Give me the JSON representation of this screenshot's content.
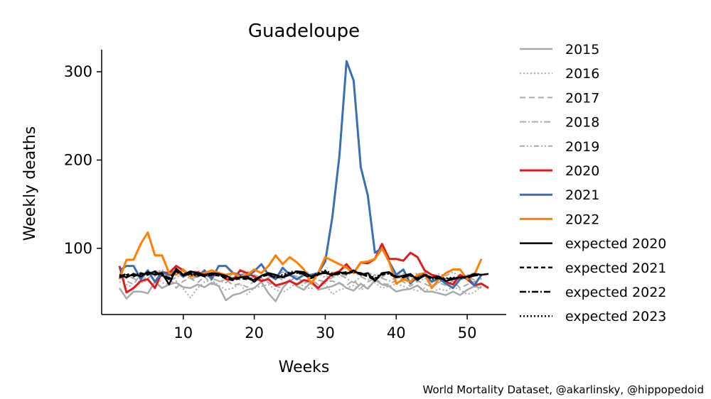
{
  "credit": "World Mortality Dataset, @akarlinsky, @hippopedoid",
  "chart_data": {
    "type": "line",
    "title": "Guadeloupe",
    "xlabel": "Weeks",
    "ylabel": "Weekly deaths",
    "xlim": [
      -1.5,
      55.5
    ],
    "ylim": [
      25,
      325
    ],
    "xticks": [
      10,
      20,
      30,
      40,
      50
    ],
    "yticks": [
      100,
      200,
      300
    ],
    "grid": false,
    "legend_position": "right",
    "series": [
      {
        "name": "2015",
        "color": "#aaaaaa",
        "dash": "",
        "width": 2.5,
        "values": [
          55,
          43,
          51,
          51,
          49,
          62,
          55,
          59,
          61,
          56,
          55,
          59,
          56,
          61,
          57,
          41,
          47,
          49,
          53,
          55,
          62,
          49,
          40,
          55,
          64,
          57,
          53,
          62,
          53,
          55,
          57,
          61,
          55,
          52,
          60,
          54,
          64,
          59,
          57,
          51,
          53,
          54,
          58,
          51,
          51,
          49,
          47,
          51,
          47,
          53,
          57,
          55
        ]
      },
      {
        "name": "2016",
        "color": "#aaaaaa",
        "dash": "2,3",
        "width": 2,
        "values": [
          62,
          59,
          55,
          61,
          64,
          68,
          61,
          59,
          63,
          54,
          44,
          55,
          62,
          64,
          58,
          53,
          55,
          60,
          48,
          55,
          57,
          59,
          53,
          50,
          55,
          61,
          57,
          54,
          59,
          60,
          48,
          53,
          55,
          58,
          53,
          56,
          61,
          55,
          57,
          60,
          57,
          54,
          52,
          55,
          50,
          54,
          52,
          56,
          53,
          48,
          50,
          57
        ]
      },
      {
        "name": "2017",
        "color": "#aaaaaa",
        "dash": "8,5",
        "width": 2,
        "values": [
          68,
          63,
          59,
          71,
          66,
          72,
          74,
          67,
          55,
          63,
          66,
          61,
          68,
          59,
          62,
          65,
          58,
          60,
          56,
          63,
          66,
          61,
          57,
          55,
          63,
          68,
          60,
          64,
          59,
          62,
          63,
          60,
          58,
          64,
          55,
          62,
          66,
          60,
          59,
          64,
          62,
          57,
          63,
          60,
          56,
          61,
          58,
          63,
          55,
          59,
          62,
          65
        ]
      },
      {
        "name": "2018",
        "color": "#aaaaaa",
        "dash": "9,3,2,3",
        "width": 2,
        "values": [
          72,
          68,
          66,
          61,
          70,
          74,
          69,
          63,
          67,
          71,
          65,
          68,
          70,
          66,
          63,
          61,
          68,
          64,
          70,
          66,
          62,
          67,
          69,
          64,
          71,
          66,
          63,
          68,
          64,
          62,
          67,
          70,
          66,
          61,
          68,
          64,
          70,
          66,
          63,
          67,
          65,
          68,
          62,
          66,
          64,
          61,
          67,
          63,
          65,
          68,
          64,
          66
        ]
      },
      {
        "name": "2019",
        "color": "#aaaaaa",
        "dash": "7,3,2,3,2,3",
        "width": 2,
        "values": [
          70,
          66,
          72,
          68,
          74,
          71,
          76,
          69,
          73,
          67,
          72,
          75,
          70,
          68,
          73,
          66,
          71,
          69,
          74,
          70,
          67,
          72,
          69,
          73,
          71,
          68,
          75,
          70,
          72,
          67,
          73,
          71,
          69,
          74,
          68,
          72,
          70,
          67,
          73,
          69,
          71,
          68,
          72,
          70,
          66,
          71,
          69,
          73,
          68,
          70,
          72,
          69
        ]
      },
      {
        "name": "2020",
        "color": "#e31a1c",
        "dash": "",
        "width": 3,
        "values": [
          80,
          50,
          55,
          63,
          65,
          55,
          73,
          72,
          80,
          75,
          68,
          73,
          70,
          68,
          72,
          65,
          64,
          75,
          72,
          68,
          63,
          65,
          58,
          60,
          63,
          59,
          64,
          62,
          55,
          63,
          71,
          74,
          82,
          72,
          84,
          83,
          88,
          105,
          88,
          88,
          86,
          95,
          90,
          75,
          70,
          68,
          62,
          59,
          70,
          65,
          58,
          60,
          55
        ]
      },
      {
        "name": "2021",
        "color": "#3a6eb5",
        "dash": "",
        "width": 3,
        "values": [
          75,
          80,
          80,
          65,
          75,
          62,
          73,
          70,
          75,
          68,
          72,
          68,
          75,
          65,
          80,
          80,
          72,
          70,
          68,
          74,
          82,
          70,
          65,
          78,
          70,
          65,
          70,
          70,
          72,
          85,
          135,
          205,
          312,
          290,
          192,
          160,
          95,
          100,
          85,
          70,
          76,
          60,
          68,
          72,
          62,
          66,
          60,
          55,
          65,
          68,
          58,
          70
        ]
      },
      {
        "name": "2022",
        "color": "#ff7f00",
        "dash": "",
        "width": 3,
        "values": [
          65,
          87,
          87,
          105,
          118,
          92,
          92,
          72,
          70,
          76,
          68,
          70,
          72,
          75,
          72,
          70,
          72,
          68,
          70,
          76,
          72,
          80,
          92,
          82,
          90,
          84,
          76,
          60,
          72,
          90,
          86,
          82,
          78,
          72,
          84,
          85,
          88,
          100,
          85,
          60,
          65,
          62,
          70,
          72,
          55,
          65,
          72,
          76,
          76,
          65,
          70,
          88
        ]
      },
      {
        "name": "expected 2020",
        "color": "#000000",
        "dash": "",
        "width": 2.5,
        "values": [
          70,
          67,
          71,
          68,
          73,
          70,
          72,
          59,
          77,
          70,
          74,
          72,
          70,
          72,
          71,
          69,
          65,
          67,
          68,
          62,
          69,
          72,
          70,
          67,
          70,
          74,
          73,
          68,
          71,
          72,
          70,
          73,
          71,
          75,
          70,
          72,
          63,
          72,
          73,
          67,
          69,
          71,
          64,
          70,
          67,
          68,
          63,
          65,
          67,
          68,
          71,
          70,
          71
        ]
      },
      {
        "name": "expected 2021",
        "color": "#000000",
        "dash": "6,4",
        "width": 2.5,
        "values": [
          67,
          70,
          68,
          72,
          70,
          74,
          71,
          66,
          75,
          69,
          72,
          71,
          68,
          70,
          69,
          66,
          64,
          66,
          65,
          64,
          68,
          70,
          67,
          68,
          71,
          73,
          70,
          66,
          70,
          74,
          69,
          72,
          73,
          74,
          71,
          68,
          64,
          70,
          72,
          68,
          67,
          70,
          65,
          69,
          66,
          67,
          64,
          65,
          68,
          66,
          70,
          71
        ]
      },
      {
        "name": "expected 2022",
        "color": "#000000",
        "dash": "9,3,2,3",
        "width": 2.5,
        "values": [
          68,
          71,
          69,
          70,
          72,
          73,
          70,
          65,
          74,
          70,
          71,
          70,
          69,
          71,
          70,
          67,
          65,
          68,
          66,
          64,
          69,
          71,
          66,
          69,
          72,
          72,
          71,
          67,
          71,
          73,
          70,
          71,
          72,
          73,
          72,
          69,
          65,
          71,
          71,
          67,
          68,
          69,
          66,
          70,
          65,
          66,
          65,
          66,
          67,
          67,
          69,
          70
        ]
      },
      {
        "name": "expected 2023",
        "color": "#000000",
        "dash": "2,3",
        "width": 2.5,
        "values": [
          69,
          68,
          70,
          71,
          71,
          72,
          69,
          67,
          73,
          71,
          70,
          69,
          70,
          70,
          71,
          68,
          66,
          67,
          67,
          65,
          68,
          70,
          68,
          70,
          73,
          74,
          72,
          68,
          72,
          75,
          71,
          72,
          71,
          74,
          71,
          70,
          66,
          72,
          72,
          68,
          69,
          70,
          65,
          71,
          66,
          67,
          66,
          67,
          66,
          68,
          70,
          71
        ]
      }
    ]
  }
}
